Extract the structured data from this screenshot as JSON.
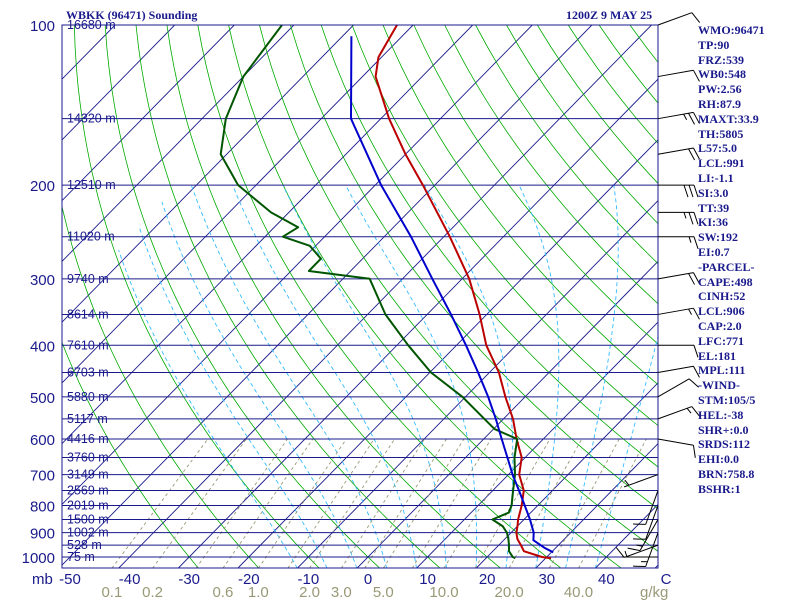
{
  "header": {
    "station": "WBKK (96471) Sounding",
    "time": "1200Z  9 MAY 25"
  },
  "indices": [
    "WMO:96471",
    "TP:90",
    "FRZ:539",
    "WB0:548",
    "PW:2.56",
    "RH:87.9",
    "MAXT:33.9",
    "TH:5805",
    "L57:5.0",
    "LCL:991",
    "LI:-1.1",
    "SI:3.0",
    "TT:39",
    "KI:36",
    "SW:192",
    "EI:0.7",
    "-PARCEL-",
    "CAPE:498",
    "CINH:52",
    "LCL:906",
    "CAP:2.0",
    "LFC:771",
    "EL:181",
    "MPL:111",
    "-WIND-",
    "STM:105/5",
    "HEL:-38",
    "SHR+:0.0",
    "SRDS:112",
    "EHI:0.0",
    "BRN:758.8",
    "BSHR:1"
  ],
  "colors": {
    "frame": "#1a1a8c",
    "isotherm": "#1a1a8c",
    "dry_adiabat": "#00aa00",
    "moist_adiabat": "#33bbff",
    "mixing_ratio": "#999977",
    "temperature": "#bb0000",
    "dewpoint": "#005500",
    "parcel": "#0000cc",
    "scale_text": "#999977"
  },
  "chart_data": {
    "type": "line",
    "title": "WBKK (96471) Sounding",
    "x_axis_unit_label": "mb",
    "mixing_ratio_unit_label": "g/kg",
    "pressure_ticks": [
      {
        "p": 100,
        "label": "100"
      },
      {
        "p": 200,
        "label": "200"
      },
      {
        "p": 300,
        "label": "300"
      },
      {
        "p": 400,
        "label": "400"
      },
      {
        "p": 500,
        "label": "500"
      },
      {
        "p": 600,
        "label": "600"
      },
      {
        "p": 700,
        "label": "700"
      },
      {
        "p": 800,
        "label": "800"
      },
      {
        "p": 900,
        "label": "900"
      },
      {
        "p": 1000,
        "label": "1000"
      }
    ],
    "height_labels": [
      {
        "p": 100,
        "label": "16680 m"
      },
      {
        "p": 150,
        "label": "14320 m"
      },
      {
        "p": 200,
        "label": "12510 m"
      },
      {
        "p": 250,
        "label": "11020 m"
      },
      {
        "p": 300,
        "label": "9740 m"
      },
      {
        "p": 350,
        "label": "8614 m"
      },
      {
        "p": 400,
        "label": "7610 m"
      },
      {
        "p": 450,
        "label": "6703 m"
      },
      {
        "p": 500,
        "label": "5880 m"
      },
      {
        "p": 550,
        "label": "5117 m"
      },
      {
        "p": 600,
        "label": "4416 m"
      },
      {
        "p": 650,
        "label": "3760 m"
      },
      {
        "p": 700,
        "label": "3149 m"
      },
      {
        "p": 750,
        "label": "2569 m"
      },
      {
        "p": 800,
        "label": "2019 m"
      },
      {
        "p": 850,
        "label": "1500 m"
      },
      {
        "p": 900,
        "label": "1002 m"
      },
      {
        "p": 950,
        "label": "528 m"
      },
      {
        "p": 1000,
        "label": "75 m"
      }
    ],
    "temperature_ticks": [
      {
        "t": -50,
        "label": "-50"
      },
      {
        "t": -40,
        "label": "-40"
      },
      {
        "t": -30,
        "label": "-30"
      },
      {
        "t": -20,
        "label": "-20"
      },
      {
        "t": -10,
        "label": "-10"
      },
      {
        "t": 0,
        "label": "0"
      },
      {
        "t": 10,
        "label": "10"
      },
      {
        "t": 20,
        "label": "20"
      },
      {
        "t": 30,
        "label": "30"
      },
      {
        "t": 40,
        "label": "40"
      },
      {
        "t": 50,
        "label": "C"
      }
    ],
    "mixing_ratio_ticks": [
      {
        "w": 0.1,
        "label": "0.1"
      },
      {
        "w": 0.2,
        "label": "0.2"
      },
      {
        "w": 0.6,
        "label": "0.6"
      },
      {
        "w": 1.0,
        "label": "1.0"
      },
      {
        "w": 2.0,
        "label": "2.0"
      },
      {
        "w": 3.0,
        "label": "3.0"
      },
      {
        "w": 5.0,
        "label": "5.0"
      },
      {
        "w": 10.0,
        "label": "10.0"
      },
      {
        "w": 20.0,
        "label": "20.0"
      },
      {
        "w": 40.0,
        "label": "40.0"
      }
    ],
    "series": [
      {
        "name": "temperature",
        "points": [
          [
            1005,
            30.9
          ],
          [
            1000,
            29.2
          ],
          [
            975,
            25.2
          ],
          [
            950,
            23.7
          ],
          [
            925,
            22.1
          ],
          [
            900,
            20.9
          ],
          [
            875,
            20.0
          ],
          [
            850,
            19.0
          ],
          [
            800,
            17.3
          ],
          [
            750,
            15.2
          ],
          [
            700,
            11.8
          ],
          [
            650,
            9.4
          ],
          [
            600,
            5.5
          ],
          [
            550,
            1.6
          ],
          [
            500,
            -3.3
          ],
          [
            450,
            -8.4
          ],
          [
            400,
            -15.0
          ],
          [
            350,
            -21.2
          ],
          [
            300,
            -28.8
          ],
          [
            250,
            -39.0
          ],
          [
            200,
            -52.0
          ],
          [
            175,
            -60.0
          ],
          [
            150,
            -68.6
          ],
          [
            125,
            -77.8
          ],
          [
            115,
            -80.5
          ],
          [
            100,
            -82.7
          ]
        ]
      },
      {
        "name": "dewpoint",
        "points": [
          [
            1005,
            24.9
          ],
          [
            1000,
            24.3
          ],
          [
            975,
            22.7
          ],
          [
            950,
            21.7
          ],
          [
            925,
            20.6
          ],
          [
            900,
            19.3
          ],
          [
            875,
            17.5
          ],
          [
            850,
            14.7
          ],
          [
            825,
            16.3
          ],
          [
            800,
            15.6
          ],
          [
            750,
            13.4
          ],
          [
            700,
            11.1
          ],
          [
            650,
            8.2
          ],
          [
            600,
            5.6
          ],
          [
            575,
            0.2
          ],
          [
            550,
            -3.2
          ],
          [
            500,
            -10.5
          ],
          [
            450,
            -19.8
          ],
          [
            400,
            -28.1
          ],
          [
            350,
            -37.0
          ],
          [
            300,
            -45.5
          ],
          [
            290,
            -57.0
          ],
          [
            275,
            -57.0
          ],
          [
            260,
            -61.0
          ],
          [
            250,
            -67.0
          ],
          [
            240,
            -66.0
          ],
          [
            225,
            -73.0
          ],
          [
            200,
            -83.0
          ],
          [
            175,
            -91.0
          ],
          [
            150,
            -96.0
          ],
          [
            125,
            -100.0
          ],
          [
            100,
            -102.0
          ]
        ]
      },
      {
        "name": "parcel",
        "points": [
          [
            980,
            30.3
          ],
          [
            960,
            28.0
          ],
          [
            930,
            25.0
          ],
          [
            900,
            23.8
          ],
          [
            850,
            21.0
          ],
          [
            800,
            17.8
          ],
          [
            750,
            14.4
          ],
          [
            700,
            10.7
          ],
          [
            650,
            7.0
          ],
          [
            600,
            3.0
          ],
          [
            550,
            -1.3
          ],
          [
            500,
            -6.2
          ],
          [
            450,
            -11.9
          ],
          [
            400,
            -18.4
          ],
          [
            350,
            -26.0
          ],
          [
            300,
            -35.0
          ],
          [
            250,
            -45.5
          ],
          [
            200,
            -59.0
          ],
          [
            150,
            -75.0
          ],
          [
            105,
            -88.5
          ]
        ]
      }
    ],
    "wind_barbs": [
      {
        "p": 100,
        "dir": 70,
        "speed": 10
      },
      {
        "p": 125,
        "dir": 80,
        "speed": 10
      },
      {
        "p": 150,
        "dir": 80,
        "speed": 25
      },
      {
        "p": 175,
        "dir": 80,
        "speed": 20
      },
      {
        "p": 200,
        "dir": 90,
        "speed": 30
      },
      {
        "p": 225,
        "dir": 90,
        "speed": 25
      },
      {
        "p": 250,
        "dir": 90,
        "speed": 15
      },
      {
        "p": 300,
        "dir": 80,
        "speed": 20
      },
      {
        "p": 350,
        "dir": 80,
        "speed": 15
      },
      {
        "p": 400,
        "dir": 90,
        "speed": 10
      },
      {
        "p": 450,
        "dir": 80,
        "speed": 10
      },
      {
        "p": 500,
        "dir": 60,
        "speed": 10
      },
      {
        "p": 550,
        "dir": 70,
        "speed": 15
      },
      {
        "p": 600,
        "dir": 100,
        "speed": 10
      },
      {
        "p": 700,
        "dir": 250,
        "speed": 5
      },
      {
        "p": 750,
        "dir": 200,
        "speed": 10
      },
      {
        "p": 800,
        "dir": 200,
        "speed": 10
      },
      {
        "p": 850,
        "dir": 210,
        "speed": 15
      },
      {
        "p": 900,
        "dir": 200,
        "speed": 15
      },
      {
        "p": 950,
        "dir": 250,
        "speed": 10
      },
      {
        "p": 1000,
        "dir": 270,
        "speed": 5
      }
    ]
  }
}
